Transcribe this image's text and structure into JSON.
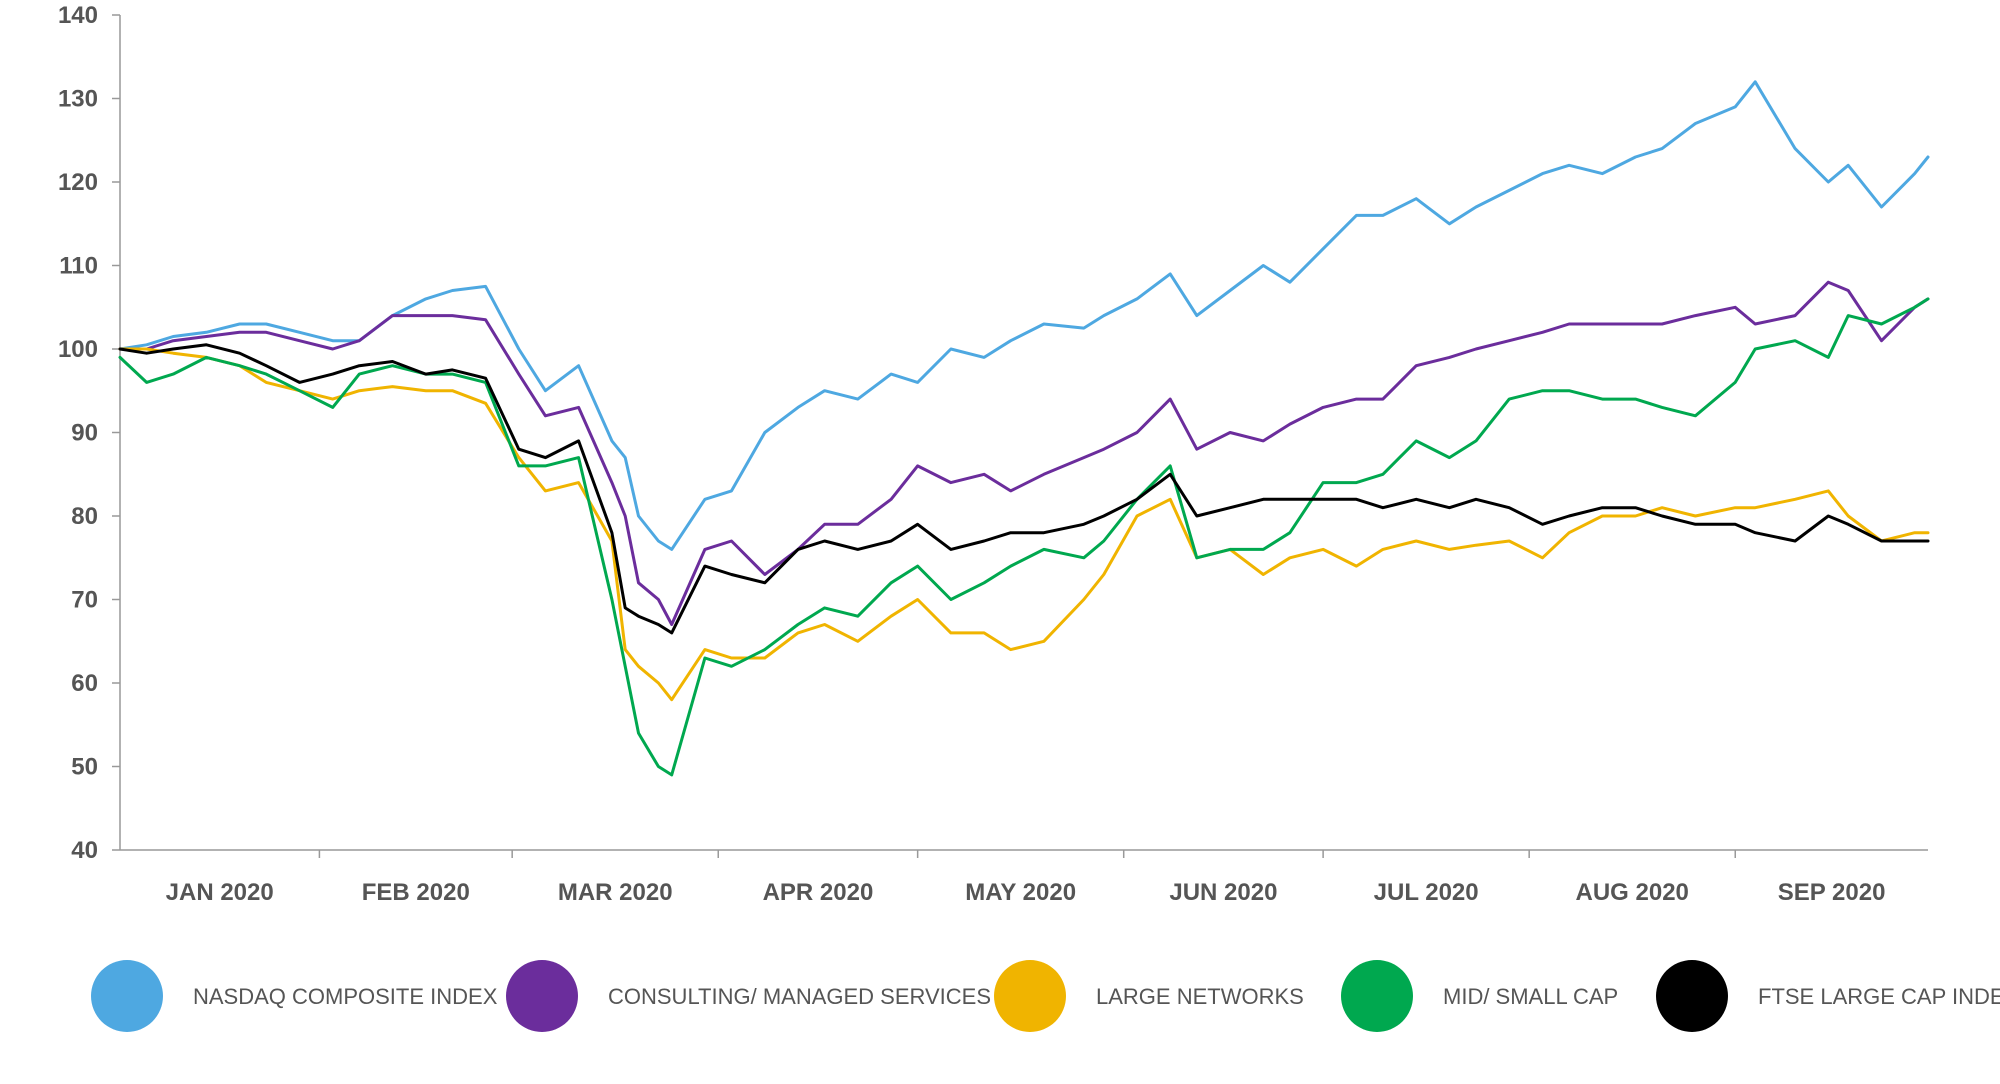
{
  "chart_data": {
    "type": "line",
    "title": "",
    "xlabel": "",
    "ylabel": "",
    "ylim": [
      40,
      140
    ],
    "yticks": [
      40,
      50,
      60,
      70,
      80,
      90,
      100,
      110,
      120,
      130,
      140
    ],
    "x_range": [
      "2020-01-02",
      "2020-09-30"
    ],
    "categories": [
      "JAN 2020",
      "FEB 2020",
      "MAR 2020",
      "APR 2020",
      "MAY 2020",
      "JUN 2020",
      "JUL 2020",
      "AUG 2020",
      "SEP 2020"
    ],
    "category_starts": [
      "2020-01-01",
      "2020-02-01",
      "2020-03-01",
      "2020-04-01",
      "2020-05-01",
      "2020-06-01",
      "2020-07-01",
      "2020-08-01",
      "2020-09-01",
      "2020-10-01"
    ],
    "grid": false,
    "legend_position": "bottom",
    "x": [
      "2020-01-02",
      "2020-01-06",
      "2020-01-10",
      "2020-01-15",
      "2020-01-20",
      "2020-01-24",
      "2020-01-29",
      "2020-02-03",
      "2020-02-07",
      "2020-02-12",
      "2020-02-17",
      "2020-02-21",
      "2020-02-26",
      "2020-03-02",
      "2020-03-06",
      "2020-03-11",
      "2020-03-16",
      "2020-03-18",
      "2020-03-20",
      "2020-03-23",
      "2020-03-25",
      "2020-03-30",
      "2020-04-03",
      "2020-04-08",
      "2020-04-13",
      "2020-04-17",
      "2020-04-22",
      "2020-04-27",
      "2020-05-01",
      "2020-05-06",
      "2020-05-11",
      "2020-05-15",
      "2020-05-20",
      "2020-05-26",
      "2020-05-29",
      "2020-06-03",
      "2020-06-08",
      "2020-06-12",
      "2020-06-17",
      "2020-06-22",
      "2020-06-26",
      "2020-07-01",
      "2020-07-06",
      "2020-07-10",
      "2020-07-15",
      "2020-07-20",
      "2020-07-24",
      "2020-07-29",
      "2020-08-03",
      "2020-08-07",
      "2020-08-12",
      "2020-08-17",
      "2020-08-21",
      "2020-08-26",
      "2020-09-01",
      "2020-09-04",
      "2020-09-10",
      "2020-09-15",
      "2020-09-18",
      "2020-09-23",
      "2020-09-28",
      "2020-09-30"
    ],
    "series": [
      {
        "name": "NASDAQ COMPOSITE INDEX",
        "color": "#4EA8E1",
        "values": [
          100,
          100.5,
          101.5,
          102,
          103,
          103,
          102,
          101,
          101,
          104,
          106,
          107,
          107.5,
          100,
          95,
          98,
          89,
          87,
          80,
          77,
          76,
          82,
          83,
          90,
          93,
          95,
          94,
          97,
          96,
          100,
          99,
          101,
          103,
          102.5,
          104,
          106,
          109,
          104,
          107,
          110,
          108,
          112,
          116,
          116,
          118,
          115,
          117,
          119,
          121,
          122,
          121,
          123,
          124,
          127,
          129,
          132,
          124,
          120,
          122,
          117,
          121,
          123
        ]
      },
      {
        "name": "CONSULTING/ MANAGED SERVICES",
        "color": "#6B2D9C",
        "values": [
          100,
          100,
          101,
          101.5,
          102,
          102,
          101,
          100,
          101,
          104,
          104,
          104,
          103.5,
          97,
          92,
          93,
          84,
          80,
          72,
          70,
          67,
          76,
          77,
          73,
          76,
          79,
          79,
          82,
          86,
          84,
          85,
          83,
          85,
          87,
          88,
          90,
          94,
          88,
          90,
          89,
          91,
          93,
          94,
          94,
          98,
          99,
          100,
          101,
          102,
          103,
          103,
          103,
          103,
          104,
          105,
          103,
          104,
          108,
          107,
          101,
          105,
          106
        ]
      },
      {
        "name": "LARGE NETWORKS",
        "color": "#F0B400",
        "values": [
          100,
          100,
          99.5,
          99,
          98,
          96,
          95,
          94,
          95,
          95.5,
          95,
          95,
          93.5,
          87,
          83,
          84,
          77,
          64,
          62,
          60,
          58,
          64,
          63,
          63,
          66,
          67,
          65,
          68,
          70,
          66,
          66,
          64,
          65,
          70,
          73,
          80,
          82,
          75,
          76,
          73,
          75,
          76,
          74,
          76,
          77,
          76,
          76.5,
          77,
          75,
          78,
          80,
          80,
          81,
          80,
          81,
          81,
          82,
          83,
          80,
          77,
          78,
          78
        ]
      },
      {
        "name": "MID/ SMALL CAP",
        "color": "#00A84F",
        "values": [
          99,
          96,
          97,
          99,
          98,
          97,
          95,
          93,
          97,
          98,
          97,
          97,
          96,
          86,
          86,
          87,
          70,
          62,
          54,
          50,
          49,
          63,
          62,
          64,
          67,
          69,
          68,
          72,
          74,
          70,
          72,
          74,
          76,
          75,
          77,
          82,
          86,
          75,
          76,
          76,
          78,
          84,
          84,
          85,
          89,
          87,
          89,
          94,
          95,
          95,
          94,
          94,
          93,
          92,
          96,
          100,
          101,
          99,
          104,
          103,
          105,
          106
        ]
      },
      {
        "name": "FTSE LARGE CAP INDEX",
        "color": "#000000",
        "values": [
          100,
          99.5,
          100,
          100.5,
          99.5,
          98,
          96,
          97,
          98,
          98.5,
          97,
          97.5,
          96.5,
          88,
          87,
          89,
          78,
          69,
          68,
          67,
          66,
          74,
          73,
          72,
          76,
          77,
          76,
          77,
          79,
          76,
          77,
          78,
          78,
          79,
          80,
          82,
          85,
          80,
          81,
          82,
          82,
          82,
          82,
          81,
          82,
          81,
          82,
          81,
          79,
          80,
          81,
          81,
          80,
          79,
          79,
          78,
          77,
          80,
          79,
          77,
          77,
          77
        ]
      }
    ]
  }
}
